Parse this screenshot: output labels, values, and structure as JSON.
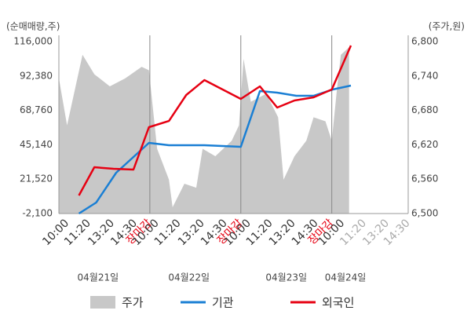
{
  "chart_data": {
    "type": "combo",
    "y_unit_label": "(순매매량,주)",
    "y2_unit_label": "(주가,원)",
    "xlim": [
      0,
      3.84
    ],
    "ylim": [
      -2100,
      116000
    ],
    "yticks": [
      {
        "value": -2100,
        "label": "-2,100"
      },
      {
        "value": 21520,
        "label": "21,520"
      },
      {
        "value": 45140,
        "label": "45,140"
      },
      {
        "value": 68760,
        "label": "68,760"
      },
      {
        "value": 92380,
        "label": "92,380"
      },
      {
        "value": 116000,
        "label": "116,000"
      }
    ],
    "y2lim": [
      6500,
      6800
    ],
    "y2ticks": [
      {
        "value": 6500,
        "label": "6,500"
      },
      {
        "value": 6560,
        "label": "6,560"
      },
      {
        "value": 6620,
        "label": "6,620"
      },
      {
        "value": 6680,
        "label": "6,680"
      },
      {
        "value": 6740,
        "label": "6,740"
      },
      {
        "value": 6800,
        "label": "6,800"
      }
    ],
    "xticks": [
      {
        "value": 0.09,
        "label": "10:00"
      },
      {
        "value": 0.33,
        "label": "11:20"
      },
      {
        "value": 0.59,
        "label": "13:20"
      },
      {
        "value": 0.84,
        "label": "14:30"
      },
      {
        "value": 1.0,
        "label": "장마감",
        "color": "#e60012"
      },
      {
        "value": 1.08,
        "label": "10:00"
      },
      {
        "value": 1.32,
        "label": "11:20"
      },
      {
        "value": 1.58,
        "label": "13:20"
      },
      {
        "value": 1.83,
        "label": "14:30"
      },
      {
        "value": 2.0,
        "label": "장마감",
        "color": "#e60012"
      },
      {
        "value": 2.09,
        "label": "10:00"
      },
      {
        "value": 2.33,
        "label": "11:20"
      },
      {
        "value": 2.58,
        "label": "13:20"
      },
      {
        "value": 2.83,
        "label": "14:30"
      },
      {
        "value": 3.0,
        "label": "장마감",
        "color": "#e60012"
      },
      {
        "value": 3.12,
        "label": "10:00"
      },
      {
        "value": 3.36,
        "label": "11:20",
        "color": "#aaa"
      },
      {
        "value": 3.61,
        "label": "13:20",
        "color": "#aaa"
      },
      {
        "value": 3.84,
        "label": "14:30",
        "color": "#aaa"
      }
    ],
    "date_ticks": [
      {
        "value": 0.43,
        "label": "04월21일"
      },
      {
        "value": 1.43,
        "label": "04월22일"
      },
      {
        "value": 2.5,
        "label": "04월23일"
      },
      {
        "value": 3.15,
        "label": "04월24일"
      }
    ],
    "separator_color": "#888",
    "series": [
      {
        "name": "주가",
        "type": "area",
        "axis": "y2",
        "color": "#c8c8c8",
        "x": [
          0,
          0.09,
          0.26,
          0.39,
          0.56,
          0.73,
          0.91,
          0.99,
          1.08,
          1.21,
          1.25,
          1.38,
          1.51,
          1.58,
          1.72,
          1.9,
          1.98,
          2.03,
          2.11,
          2.28,
          2.41,
          2.47,
          2.59,
          2.72,
          2.8,
          2.93,
          3.0,
          3.06,
          3.1,
          3.19
        ],
        "values": [
          6736,
          6654,
          6777,
          6743,
          6722,
          6736,
          6756,
          6750,
          6613,
          6559,
          6511,
          6552,
          6545,
          6613,
          6600,
          6627,
          6654,
          6770,
          6695,
          6709,
          6668,
          6559,
          6600,
          6627,
          6668,
          6661,
          6627,
          6722,
          6777,
          6790
        ]
      },
      {
        "name": "기관",
        "type": "line",
        "color": "#1a7fd4",
        "x": [
          0.22,
          0.41,
          0.63,
          0.99,
          1.21,
          1.6,
          2.0,
          2.21,
          2.4,
          2.61,
          2.8,
          3.01,
          3.21
        ],
        "values": [
          -2100,
          5450,
          25940,
          46430,
          44810,
          44810,
          43740,
          82030,
          80950,
          78790,
          78790,
          83100,
          85800
        ]
      },
      {
        "name": "외국인",
        "type": "line",
        "color": "#e60012",
        "x": [
          0.22,
          0.39,
          0.6,
          0.82,
          0.99,
          1.21,
          1.4,
          1.6,
          2.0,
          2.21,
          2.4,
          2.59,
          2.8,
          3.0,
          3.21
        ],
        "values": [
          10300,
          29710,
          28630,
          28100,
          57220,
          61530,
          79330,
          89580,
          76630,
          85260,
          70700,
          75550,
          77710,
          83100,
          113300
        ]
      }
    ]
  }
}
